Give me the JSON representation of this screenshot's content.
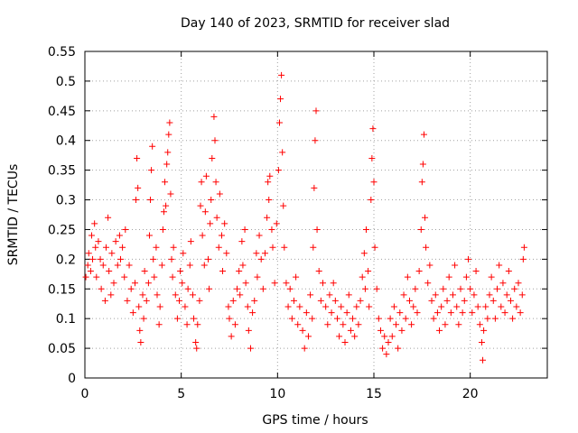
{
  "chart_data": {
    "type": "scatter",
    "title": "Day 140 of 2023, SRMTID for receiver slad",
    "xlabel": "GPS time / hours",
    "ylabel": "SRMTID / TECUs",
    "xlim": [
      0,
      24
    ],
    "ylim": [
      0,
      0.55
    ],
    "xticks": [
      0,
      5,
      10,
      15,
      20
    ],
    "xtick_labels": [
      "0",
      "5",
      "10",
      "15",
      "20"
    ],
    "yticks": [
      0,
      0.05,
      0.1,
      0.15,
      0.2,
      0.25,
      0.3,
      0.35,
      0.4,
      0.45,
      0.5,
      0.55
    ],
    "ytick_labels": [
      "0",
      "0.05",
      "0.1",
      "0.15",
      "0.2",
      "0.25",
      "0.3",
      "0.35",
      "0.4",
      "0.45",
      "0.5",
      "0.55"
    ],
    "grid": true,
    "marker": "+",
    "series_color": "#ff0000",
    "series": [
      {
        "name": "SRMTID",
        "points": [
          [
            0.05,
            0.17
          ],
          [
            0.15,
            0.19
          ],
          [
            0.2,
            0.21
          ],
          [
            0.3,
            0.18
          ],
          [
            0.35,
            0.24
          ],
          [
            0.4,
            0.2
          ],
          [
            0.5,
            0.26
          ],
          [
            0.55,
            0.22
          ],
          [
            0.6,
            0.17
          ],
          [
            0.7,
            0.23
          ],
          [
            0.8,
            0.2
          ],
          [
            0.85,
            0.15
          ],
          [
            0.95,
            0.19
          ],
          [
            1.05,
            0.13
          ],
          [
            1.1,
            0.22
          ],
          [
            1.2,
            0.27
          ],
          [
            1.25,
            0.18
          ],
          [
            1.35,
            0.14
          ],
          [
            1.4,
            0.21
          ],
          [
            1.5,
            0.16
          ],
          [
            1.6,
            0.23
          ],
          [
            1.7,
            0.19
          ],
          [
            1.8,
            0.24
          ],
          [
            1.85,
            0.2
          ],
          [
            1.95,
            0.22
          ],
          [
            2.05,
            0.17
          ],
          [
            2.1,
            0.25
          ],
          [
            2.2,
            0.13
          ],
          [
            2.3,
            0.19
          ],
          [
            2.4,
            0.15
          ],
          [
            2.5,
            0.11
          ],
          [
            2.6,
            0.16
          ],
          [
            2.65,
            0.3
          ],
          [
            2.7,
            0.37
          ],
          [
            2.75,
            0.32
          ],
          [
            2.8,
            0.12
          ],
          [
            2.85,
            0.08
          ],
          [
            2.9,
            0.06
          ],
          [
            3.0,
            0.14
          ],
          [
            3.05,
            0.1
          ],
          [
            3.1,
            0.18
          ],
          [
            3.2,
            0.13
          ],
          [
            3.3,
            0.16
          ],
          [
            3.35,
            0.24
          ],
          [
            3.4,
            0.3
          ],
          [
            3.45,
            0.35
          ],
          [
            3.5,
            0.39
          ],
          [
            3.55,
            0.2
          ],
          [
            3.6,
            0.17
          ],
          [
            3.7,
            0.22
          ],
          [
            3.75,
            0.14
          ],
          [
            3.85,
            0.09
          ],
          [
            3.9,
            0.12
          ],
          [
            4.0,
            0.19
          ],
          [
            4.05,
            0.25
          ],
          [
            4.1,
            0.28
          ],
          [
            4.15,
            0.33
          ],
          [
            4.2,
            0.29
          ],
          [
            4.25,
            0.36
          ],
          [
            4.3,
            0.38
          ],
          [
            4.35,
            0.41
          ],
          [
            4.4,
            0.43
          ],
          [
            4.45,
            0.31
          ],
          [
            4.5,
            0.2
          ],
          [
            4.55,
            0.17
          ],
          [
            4.6,
            0.22
          ],
          [
            4.7,
            0.14
          ],
          [
            4.8,
            0.1
          ],
          [
            4.9,
            0.13
          ],
          [
            4.95,
            0.18
          ],
          [
            5.05,
            0.16
          ],
          [
            5.1,
            0.21
          ],
          [
            5.2,
            0.12
          ],
          [
            5.3,
            0.09
          ],
          [
            5.35,
            0.15
          ],
          [
            5.45,
            0.19
          ],
          [
            5.5,
            0.23
          ],
          [
            5.6,
            0.14
          ],
          [
            5.65,
            0.1
          ],
          [
            5.75,
            0.06
          ],
          [
            5.8,
            0.05
          ],
          [
            5.85,
            0.09
          ],
          [
            5.95,
            0.13
          ],
          [
            6.0,
            0.29
          ],
          [
            6.05,
            0.33
          ],
          [
            6.1,
            0.24
          ],
          [
            6.2,
            0.19
          ],
          [
            6.25,
            0.28
          ],
          [
            6.3,
            0.34
          ],
          [
            6.4,
            0.2
          ],
          [
            6.45,
            0.15
          ],
          [
            6.5,
            0.26
          ],
          [
            6.55,
            0.3
          ],
          [
            6.6,
            0.37
          ],
          [
            6.7,
            0.44
          ],
          [
            6.75,
            0.4
          ],
          [
            6.8,
            0.33
          ],
          [
            6.85,
            0.27
          ],
          [
            6.95,
            0.22
          ],
          [
            7.0,
            0.31
          ],
          [
            7.1,
            0.24
          ],
          [
            7.15,
            0.18
          ],
          [
            7.25,
            0.26
          ],
          [
            7.35,
            0.21
          ],
          [
            7.45,
            0.12
          ],
          [
            7.5,
            0.1
          ],
          [
            7.6,
            0.07
          ],
          [
            7.7,
            0.13
          ],
          [
            7.8,
            0.09
          ],
          [
            7.9,
            0.15
          ],
          [
            8.0,
            0.18
          ],
          [
            8.05,
            0.14
          ],
          [
            8.15,
            0.23
          ],
          [
            8.2,
            0.19
          ],
          [
            8.3,
            0.25
          ],
          [
            8.35,
            0.16
          ],
          [
            8.45,
            0.12
          ],
          [
            8.5,
            0.08
          ],
          [
            8.6,
            0.05
          ],
          [
            8.7,
            0.11
          ],
          [
            8.8,
            0.13
          ],
          [
            8.9,
            0.21
          ],
          [
            8.95,
            0.17
          ],
          [
            9.05,
            0.24
          ],
          [
            9.15,
            0.2
          ],
          [
            9.25,
            0.15
          ],
          [
            9.35,
            0.21
          ],
          [
            9.45,
            0.27
          ],
          [
            9.5,
            0.33
          ],
          [
            9.55,
            0.3
          ],
          [
            9.6,
            0.34
          ],
          [
            9.7,
            0.25
          ],
          [
            9.75,
            0.22
          ],
          [
            9.85,
            0.16
          ],
          [
            9.95,
            0.26
          ],
          [
            10.05,
            0.35
          ],
          [
            10.1,
            0.43
          ],
          [
            10.15,
            0.47
          ],
          [
            10.2,
            0.51
          ],
          [
            10.25,
            0.38
          ],
          [
            10.3,
            0.29
          ],
          [
            10.35,
            0.22
          ],
          [
            10.45,
            0.16
          ],
          [
            10.55,
            0.12
          ],
          [
            10.65,
            0.15
          ],
          [
            10.75,
            0.1
          ],
          [
            10.85,
            0.13
          ],
          [
            10.95,
            0.17
          ],
          [
            11.05,
            0.09
          ],
          [
            11.15,
            0.12
          ],
          [
            11.3,
            0.08
          ],
          [
            11.4,
            0.05
          ],
          [
            11.5,
            0.11
          ],
          [
            11.6,
            0.07
          ],
          [
            11.7,
            0.14
          ],
          [
            11.8,
            0.1
          ],
          [
            11.85,
            0.22
          ],
          [
            11.9,
            0.32
          ],
          [
            11.95,
            0.4
          ],
          [
            12.0,
            0.45
          ],
          [
            12.05,
            0.25
          ],
          [
            12.15,
            0.18
          ],
          [
            12.25,
            0.13
          ],
          [
            12.35,
            0.16
          ],
          [
            12.5,
            0.12
          ],
          [
            12.6,
            0.09
          ],
          [
            12.7,
            0.14
          ],
          [
            12.8,
            0.11
          ],
          [
            12.9,
            0.16
          ],
          [
            13.0,
            0.13
          ],
          [
            13.1,
            0.1
          ],
          [
            13.2,
            0.07
          ],
          [
            13.3,
            0.12
          ],
          [
            13.4,
            0.09
          ],
          [
            13.5,
            0.06
          ],
          [
            13.6,
            0.11
          ],
          [
            13.7,
            0.14
          ],
          [
            13.8,
            0.08
          ],
          [
            13.9,
            0.1
          ],
          [
            14.0,
            0.07
          ],
          [
            14.1,
            0.12
          ],
          [
            14.2,
            0.09
          ],
          [
            14.3,
            0.13
          ],
          [
            14.4,
            0.17
          ],
          [
            14.5,
            0.21
          ],
          [
            14.55,
            0.15
          ],
          [
            14.6,
            0.25
          ],
          [
            14.7,
            0.18
          ],
          [
            14.75,
            0.12
          ],
          [
            14.85,
            0.3
          ],
          [
            14.9,
            0.37
          ],
          [
            14.95,
            0.42
          ],
          [
            15.0,
            0.33
          ],
          [
            15.05,
            0.22
          ],
          [
            15.15,
            0.15
          ],
          [
            15.25,
            0.1
          ],
          [
            15.35,
            0.08
          ],
          [
            15.45,
            0.05
          ],
          [
            15.55,
            0.07
          ],
          [
            15.65,
            0.04
          ],
          [
            15.75,
            0.06
          ],
          [
            15.85,
            0.1
          ],
          [
            15.95,
            0.07
          ],
          [
            16.05,
            0.12
          ],
          [
            16.15,
            0.09
          ],
          [
            16.25,
            0.05
          ],
          [
            16.35,
            0.11
          ],
          [
            16.45,
            0.08
          ],
          [
            16.55,
            0.14
          ],
          [
            16.65,
            0.1
          ],
          [
            16.75,
            0.17
          ],
          [
            16.85,
            0.13
          ],
          [
            16.95,
            0.09
          ],
          [
            17.05,
            0.12
          ],
          [
            17.15,
            0.15
          ],
          [
            17.25,
            0.11
          ],
          [
            17.35,
            0.18
          ],
          [
            17.45,
            0.25
          ],
          [
            17.5,
            0.33
          ],
          [
            17.55,
            0.36
          ],
          [
            17.6,
            0.41
          ],
          [
            17.65,
            0.27
          ],
          [
            17.7,
            0.22
          ],
          [
            17.8,
            0.16
          ],
          [
            17.9,
            0.19
          ],
          [
            18.0,
            0.13
          ],
          [
            18.1,
            0.1
          ],
          [
            18.2,
            0.14
          ],
          [
            18.3,
            0.11
          ],
          [
            18.4,
            0.08
          ],
          [
            18.5,
            0.12
          ],
          [
            18.6,
            0.15
          ],
          [
            18.7,
            0.09
          ],
          [
            18.8,
            0.13
          ],
          [
            18.9,
            0.17
          ],
          [
            19.0,
            0.11
          ],
          [
            19.1,
            0.14
          ],
          [
            19.2,
            0.19
          ],
          [
            19.3,
            0.12
          ],
          [
            19.4,
            0.09
          ],
          [
            19.5,
            0.15
          ],
          [
            19.6,
            0.11
          ],
          [
            19.7,
            0.13
          ],
          [
            19.8,
            0.17
          ],
          [
            19.9,
            0.2
          ],
          [
            20.0,
            0.15
          ],
          [
            20.1,
            0.11
          ],
          [
            20.2,
            0.14
          ],
          [
            20.3,
            0.18
          ],
          [
            20.4,
            0.12
          ],
          [
            20.5,
            0.09
          ],
          [
            20.6,
            0.06
          ],
          [
            20.65,
            0.03
          ],
          [
            20.7,
            0.08
          ],
          [
            20.8,
            0.12
          ],
          [
            20.9,
            0.1
          ],
          [
            21.0,
            0.14
          ],
          [
            21.1,
            0.17
          ],
          [
            21.2,
            0.13
          ],
          [
            21.3,
            0.1
          ],
          [
            21.4,
            0.15
          ],
          [
            21.5,
            0.19
          ],
          [
            21.6,
            0.12
          ],
          [
            21.7,
            0.16
          ],
          [
            21.8,
            0.11
          ],
          [
            21.9,
            0.14
          ],
          [
            22.0,
            0.18
          ],
          [
            22.1,
            0.13
          ],
          [
            22.2,
            0.1
          ],
          [
            22.3,
            0.15
          ],
          [
            22.4,
            0.12
          ],
          [
            22.5,
            0.16
          ],
          [
            22.6,
            0.11
          ],
          [
            22.7,
            0.14
          ],
          [
            22.75,
            0.2
          ],
          [
            22.8,
            0.22
          ]
        ]
      }
    ]
  }
}
